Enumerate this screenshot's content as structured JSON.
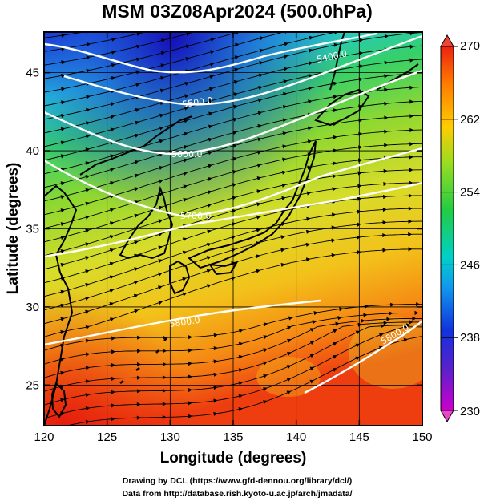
{
  "title": "MSM 03Z08Apr2024 (500.0hPa)",
  "x_axis": {
    "label": "Longitude (degrees)",
    "ticks": [
      "120",
      "125",
      "130",
      "135",
      "140",
      "145",
      "150"
    ],
    "range": [
      120,
      150
    ]
  },
  "y_axis": {
    "label": "Latitude  (degrees)",
    "ticks": [
      "25",
      "30",
      "35",
      "40",
      "45"
    ],
    "range": [
      22.4,
      47.6
    ]
  },
  "colorbar": {
    "ticks": [
      "230",
      "238",
      "246",
      "254",
      "262",
      "270"
    ],
    "range": [
      230,
      270
    ],
    "colors": [
      "#cc00cc",
      "#4422cc",
      "#0044dd",
      "#00c8c8",
      "#22cc44",
      "#bbdd22",
      "#ffcc00",
      "#ff7700",
      "#ee2211"
    ]
  },
  "contours": [
    {
      "label": "5400.0"
    },
    {
      "label": "5500.0"
    },
    {
      "label": "5600.0"
    },
    {
      "label": "5700.0"
    },
    {
      "label": "5800.0"
    },
    {
      "label": "5800.0"
    }
  ],
  "credits": {
    "line1": "Drawing by DCL (https://www.gfd-dennou.org/library/dcl/)",
    "line2": "Data from http://database.rish.kyoto-u.ac.jp/arch/jmadata/"
  },
  "field_colors": {
    "cold": "#1133cc",
    "cool": "#22ccdd",
    "mid": "#33cc55",
    "warm": "#eedd22",
    "hot": "#ee4411"
  }
}
